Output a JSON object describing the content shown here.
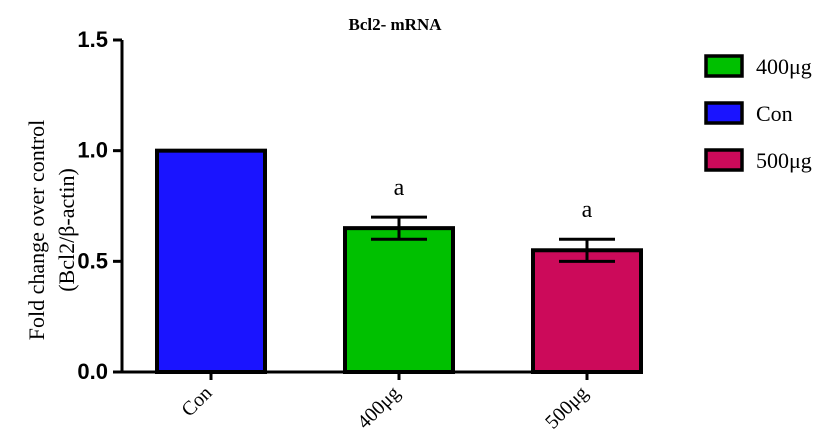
{
  "chart_data": {
    "type": "bar",
    "title": "Bcl2- mRNA",
    "ylabel_line1": "Fold change over control",
    "ylabel_line2": "(Bcl2/β-actin)",
    "xlabel": "",
    "categories": [
      "Con",
      "400μg",
      "500μg"
    ],
    "values": [
      1.0,
      0.65,
      0.55
    ],
    "errors": [
      0,
      0.05,
      0.05
    ],
    "annotations": [
      "",
      "a",
      "a"
    ],
    "bar_colors": [
      "#1a14ff",
      "#00c000",
      "#cc0a5a"
    ],
    "ylim": [
      0,
      1.5
    ],
    "yticks": [
      0.0,
      0.5,
      1.0,
      1.5
    ],
    "ytick_labels": [
      "0.0",
      "0.5",
      "1.0",
      "1.5"
    ],
    "legend": [
      {
        "label": "400μg",
        "color": "#00c000"
      },
      {
        "label": "Con",
        "color": "#1a14ff"
      },
      {
        "label": "500μg",
        "color": "#cc0a5a"
      }
    ],
    "legend_position": "right",
    "grid": false
  }
}
